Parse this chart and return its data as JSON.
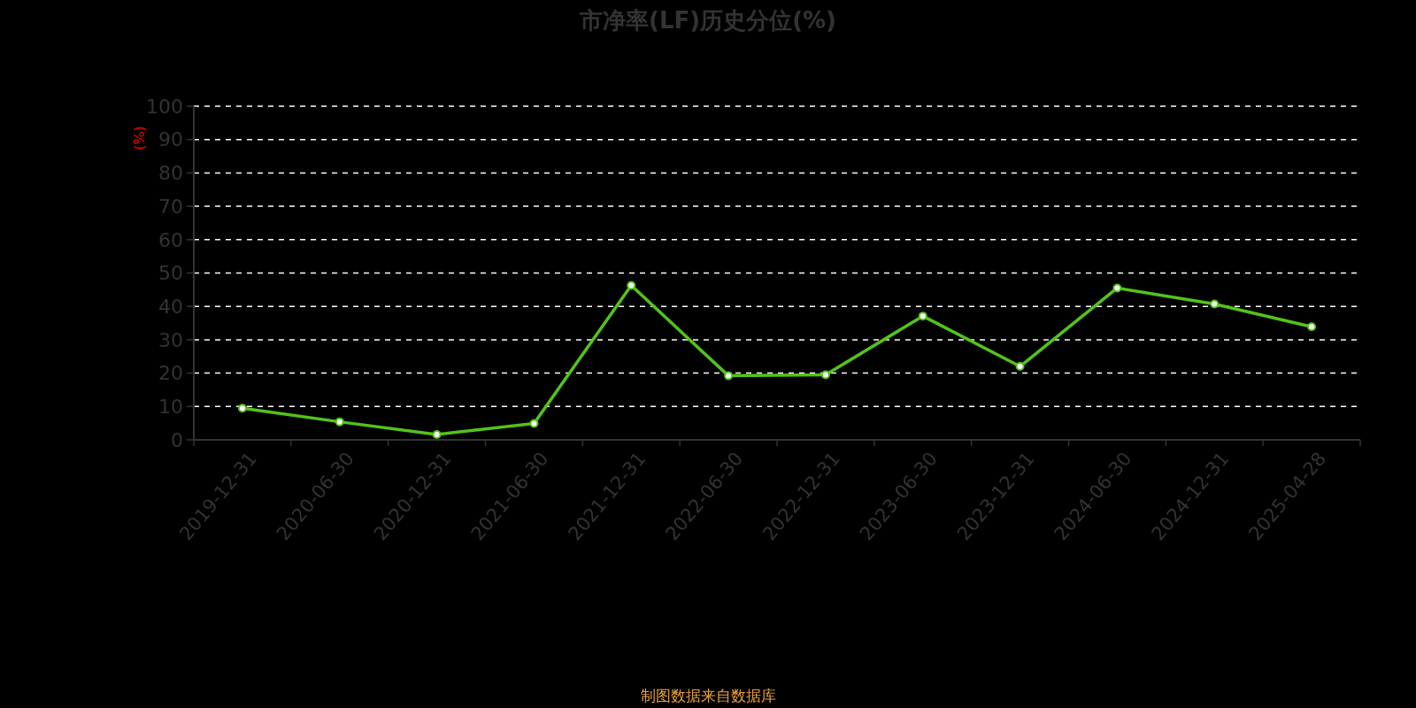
{
  "chart_data": {
    "type": "line",
    "title": "市净率(LF)历史分位(%)",
    "ylabel": "(%)",
    "categories": [
      "2019-12-31",
      "2020-06-30",
      "2020-12-31",
      "2021-06-30",
      "2021-12-31",
      "2022-06-30",
      "2022-12-31",
      "2023-06-30",
      "2023-12-31",
      "2024-06-30",
      "2024-12-31",
      "2025-04-28"
    ],
    "series": [
      {
        "color": "#52c41a",
        "values": [
          9.5,
          5.4,
          1.6,
          4.9,
          46.3,
          19.2,
          19.5,
          37.1,
          22.0,
          45.5,
          40.7,
          33.9
        ]
      }
    ],
    "ylim": [
      0,
      100
    ],
    "yticks": [
      0,
      10,
      20,
      30,
      40,
      50,
      60,
      70,
      80,
      90,
      100
    ],
    "grid": "y",
    "marker": "circle",
    "annotations": [
      "制图数据来自数据库"
    ]
  }
}
